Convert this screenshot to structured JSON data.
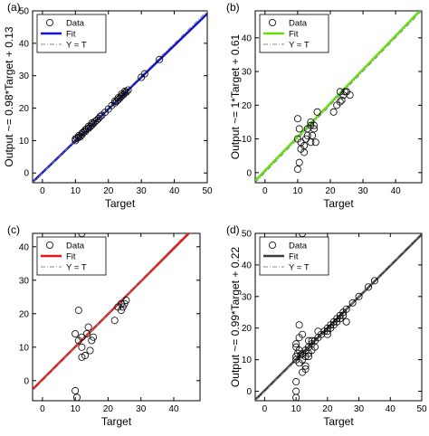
{
  "chart_data": [
    {
      "type": "scatter",
      "panel_label": "(a)",
      "xlabel": "Target",
      "ylabel": "Output ~= 0.98*Target + 0.13",
      "xlim": [
        -3,
        50
      ],
      "ylim": [
        -3,
        50
      ],
      "xticks": [
        0,
        10,
        20,
        30,
        40,
        50
      ],
      "yticks": [
        0,
        10,
        20,
        30,
        40,
        50
      ],
      "fit": {
        "slope": 0.98,
        "intercept": 0.13,
        "color": "#1414c8"
      },
      "legend": {
        "position": "top-left",
        "entries": [
          "Data",
          "Fit",
          "Y = T"
        ]
      },
      "points": [
        [
          10,
          10
        ],
        [
          10,
          10.5
        ],
        [
          10.5,
          10.8
        ],
        [
          11,
          11
        ],
        [
          11,
          11.5
        ],
        [
          11.5,
          11.2
        ],
        [
          12,
          11.8
        ],
        [
          12,
          12.3
        ],
        [
          12.5,
          12.6
        ],
        [
          13,
          12.8
        ],
        [
          13,
          13.3
        ],
        [
          13.5,
          13.6
        ],
        [
          14,
          13.8
        ],
        [
          14,
          14.4
        ],
        [
          14.5,
          14.3
        ],
        [
          15,
          14.8
        ],
        [
          15,
          15.4
        ],
        [
          15.5,
          15.3
        ],
        [
          16,
          15.9
        ],
        [
          16.5,
          16.3
        ],
        [
          17,
          16.8
        ],
        [
          17.5,
          17.4
        ],
        [
          18,
          17.8
        ],
        [
          19,
          18.7
        ],
        [
          20,
          19.7
        ],
        [
          21,
          20.8
        ],
        [
          22,
          21.6
        ],
        [
          22,
          22.2
        ],
        [
          22.5,
          22.1
        ],
        [
          23,
          22.6
        ],
        [
          23,
          23.2
        ],
        [
          23.5,
          23.1
        ],
        [
          24,
          23.7
        ],
        [
          24,
          24.3
        ],
        [
          24.5,
          24.1
        ],
        [
          25,
          24.7
        ],
        [
          25,
          25.2
        ],
        [
          25.5,
          25
        ],
        [
          26,
          25.6
        ],
        [
          30,
          29.5
        ],
        [
          31,
          30.6
        ],
        [
          35.5,
          35
        ]
      ]
    },
    {
      "type": "scatter",
      "panel_label": "(b)",
      "xlabel": "Target",
      "ylabel": "Output ~= 1*Target + 0.61",
      "xlim": [
        -3,
        48
      ],
      "ylim": [
        -3,
        48
      ],
      "xticks": [
        0,
        10,
        20,
        30,
        40
      ],
      "yticks": [
        0,
        10,
        20,
        30,
        40
      ],
      "fit": {
        "slope": 1,
        "intercept": 0.61,
        "color": "#66dd11"
      },
      "legend": {
        "position": "top-left",
        "entries": [
          "Data",
          "Fit",
          "Y = T"
        ]
      },
      "points": [
        [
          10,
          10
        ],
        [
          10.5,
          13
        ],
        [
          10,
          16
        ],
        [
          11,
          7
        ],
        [
          10,
          1
        ],
        [
          10.5,
          3
        ],
        [
          11,
          9
        ],
        [
          12,
          6
        ],
        [
          12,
          8
        ],
        [
          12.5,
          10
        ],
        [
          13,
          11
        ],
        [
          13,
          13
        ],
        [
          14,
          14
        ],
        [
          14,
          15
        ],
        [
          15,
          14
        ],
        [
          15,
          13
        ],
        [
          15.5,
          9
        ],
        [
          14,
          9
        ],
        [
          14.5,
          11
        ],
        [
          16,
          18
        ],
        [
          22,
          20
        ],
        [
          23,
          21
        ],
        [
          23.5,
          21.5
        ],
        [
          24,
          23
        ],
        [
          24.5,
          24
        ],
        [
          25,
          24
        ],
        [
          23,
          24
        ],
        [
          26,
          23
        ],
        [
          21,
          18
        ]
      ]
    },
    {
      "type": "scatter",
      "panel_label": "(c)",
      "xlabel": "Target",
      "ylabel": "",
      "xlim": [
        -3,
        48
      ],
      "ylim": [
        -6,
        44
      ],
      "xticks": [
        0,
        10,
        20,
        30,
        40
      ],
      "yticks": [
        0,
        10,
        20,
        30,
        40
      ],
      "fit": {
        "slope": 0.98,
        "intercept": 0.3,
        "color": "#e01818"
      },
      "legend": {
        "position": "top-left",
        "entries": [
          "Data",
          "Fit",
          "Y = T"
        ]
      },
      "points": [
        [
          12,
          44
        ],
        [
          10,
          -3
        ],
        [
          10.5,
          -5
        ],
        [
          11,
          21
        ],
        [
          12,
          10
        ],
        [
          11,
          12
        ],
        [
          10,
          14
        ],
        [
          12,
          13
        ],
        [
          13.5,
          14
        ],
        [
          12,
          7
        ],
        [
          13,
          7.5
        ],
        [
          14.5,
          9
        ],
        [
          15,
          12
        ],
        [
          15.5,
          13
        ],
        [
          14,
          16
        ],
        [
          22,
          18
        ],
        [
          23,
          22
        ],
        [
          24,
          23
        ],
        [
          24.5,
          22
        ],
        [
          25,
          23
        ],
        [
          25.5,
          24
        ],
        [
          24,
          21
        ]
      ]
    },
    {
      "type": "scatter",
      "panel_label": "(d)",
      "xlabel": "Target",
      "ylabel": "Output ~= 0.99*Target + 0.22",
      "xlim": [
        -3,
        50
      ],
      "ylim": [
        -3,
        50
      ],
      "xticks": [
        0,
        10,
        20,
        30,
        40,
        50
      ],
      "yticks": [
        0,
        10,
        20,
        30,
        40,
        50
      ],
      "fit": {
        "slope": 0.99,
        "intercept": 0.22,
        "color": "#3a3a3a"
      },
      "legend": {
        "position": "top-left",
        "entries": [
          "Data",
          "Fit",
          "Y = T"
        ]
      },
      "points": [
        [
          12,
          50
        ],
        [
          10,
          0
        ],
        [
          10,
          -2
        ],
        [
          10,
          3
        ],
        [
          10,
          10
        ],
        [
          10,
          11
        ],
        [
          10.5,
          12
        ],
        [
          11,
          9
        ],
        [
          11.5,
          11.5
        ],
        [
          12,
          12
        ],
        [
          12,
          10
        ],
        [
          13,
          13
        ],
        [
          13,
          8
        ],
        [
          14,
          14
        ],
        [
          14,
          12
        ],
        [
          15,
          15
        ],
        [
          15,
          13
        ],
        [
          16,
          14
        ],
        [
          10,
          15
        ],
        [
          11,
          17
        ],
        [
          12,
          18
        ],
        [
          11,
          21
        ],
        [
          10,
          14
        ],
        [
          11,
          13
        ],
        [
          12,
          6
        ],
        [
          13,
          7
        ],
        [
          14,
          16
        ],
        [
          15,
          16
        ],
        [
          16,
          16
        ],
        [
          17,
          17
        ],
        [
          18,
          18
        ],
        [
          19,
          19
        ],
        [
          20,
          20
        ],
        [
          20,
          19
        ],
        [
          21,
          21
        ],
        [
          21,
          20
        ],
        [
          22,
          22
        ],
        [
          22,
          21
        ],
        [
          23,
          23
        ],
        [
          23,
          22
        ],
        [
          24,
          24
        ],
        [
          24,
          23
        ],
        [
          25,
          25
        ],
        [
          25,
          24
        ],
        [
          26,
          26
        ],
        [
          26,
          22
        ],
        [
          20,
          18
        ],
        [
          17,
          19
        ],
        [
          28,
          28
        ],
        [
          30,
          30
        ],
        [
          33,
          33
        ],
        [
          35,
          35
        ],
        [
          14,
          11
        ],
        [
          13,
          11
        ]
      ]
    }
  ]
}
